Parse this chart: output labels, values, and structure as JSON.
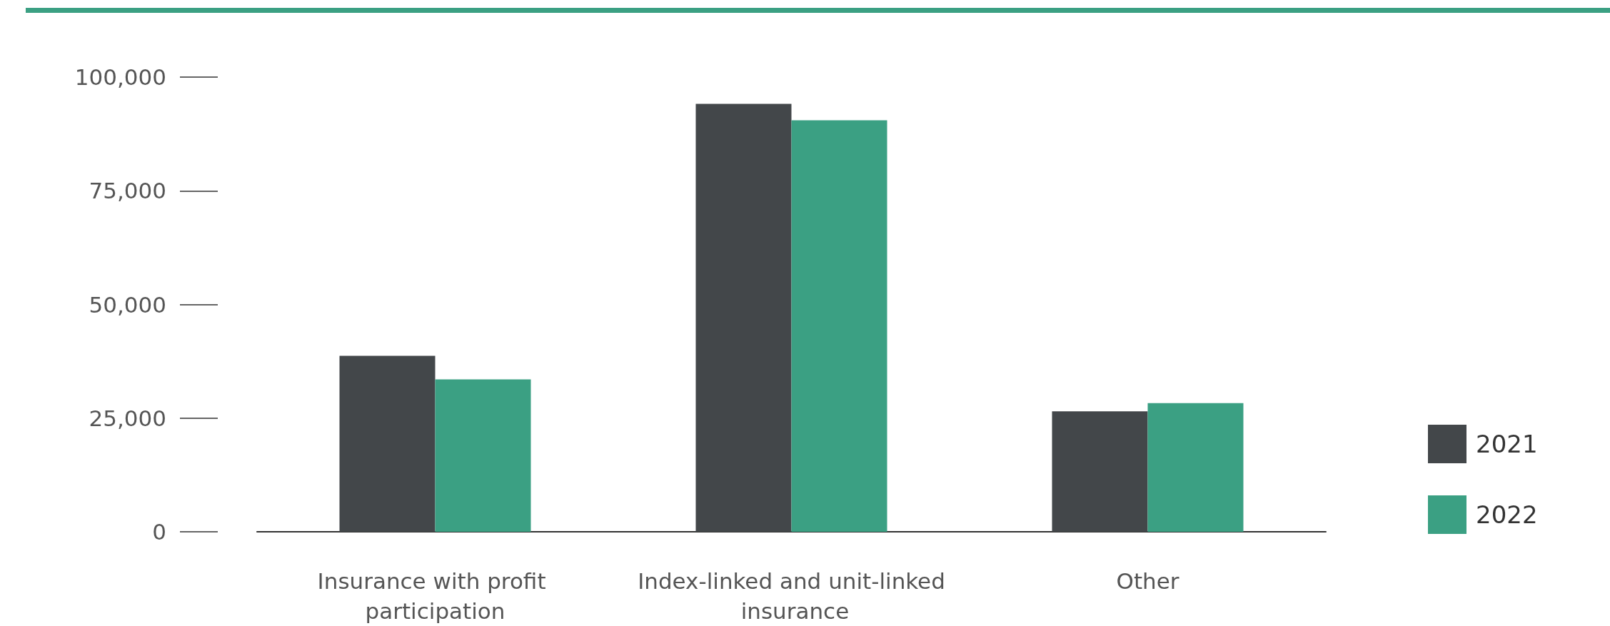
{
  "chart_data": {
    "type": "bar",
    "categories": [
      "Insurance with profit participation",
      "Index-linked and unit-linked insurance",
      "Other"
    ],
    "series": [
      {
        "name": "2021",
        "color": "#43474a",
        "values": [
          38700,
          94100,
          26500
        ]
      },
      {
        "name": "2022",
        "color": "#3ba083",
        "values": [
          33500,
          90500,
          28300
        ]
      }
    ],
    "ylim": [
      0,
      100000
    ],
    "yticks": [
      0,
      {
        "value": 25000,
        "label": "25,000"
      },
      {
        "value": 50000,
        "label": "50,000"
      },
      {
        "value": 75000,
        "label": "75,000"
      },
      {
        "value": 100000,
        "label": "100,000"
      }
    ],
    "grid": false,
    "legend": "right"
  }
}
